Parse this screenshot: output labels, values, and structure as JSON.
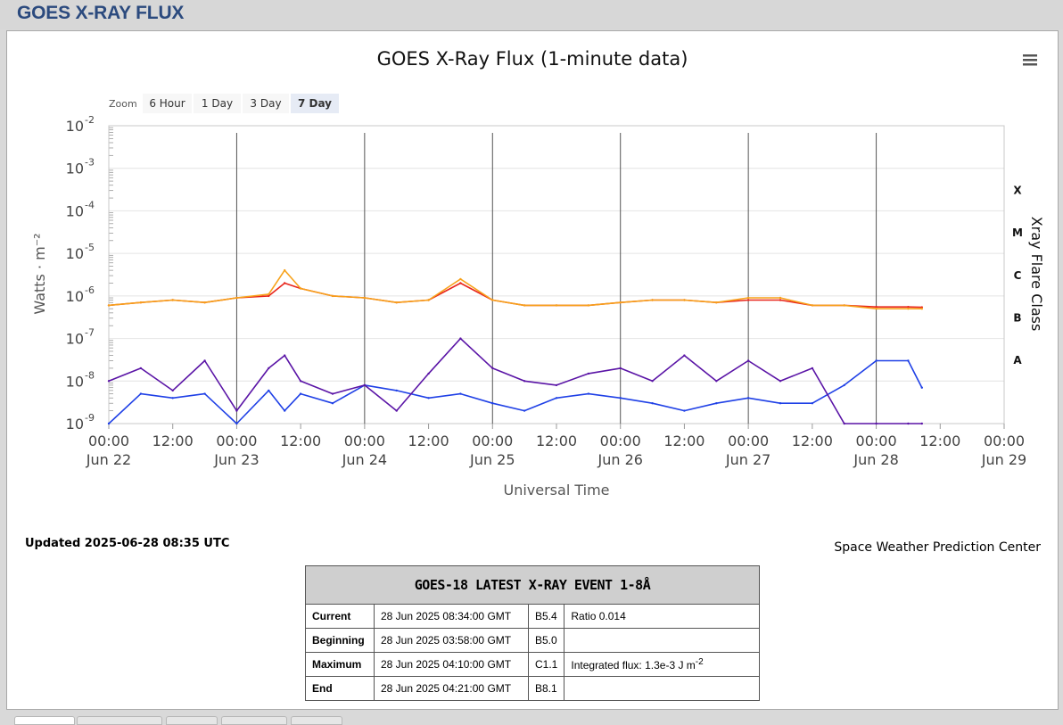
{
  "header": {
    "title": "GOES X-RAY FLUX"
  },
  "chart_menu_icon": "hamburger-menu-icon",
  "zoom": {
    "label": "Zoom",
    "buttons": [
      "6 Hour",
      "1 Day",
      "3 Day",
      "7 Day"
    ],
    "selected": "7 Day"
  },
  "updated_text": "Updated 2025-06-28 08:35 UTC",
  "credit_text": "Space Weather Prediction Center",
  "colors": {
    "goes18_long": "#e8261c",
    "goes18_short": "#1f40e6",
    "goes19_long": "#f7a21b",
    "goes19_short": "#5a14a6"
  },
  "chart_data": {
    "type": "line",
    "title": "GOES X-Ray Flux (1-minute data)",
    "xlabel": "Universal Time",
    "ylabel": "Watts · m⁻²",
    "y2label": "Xray Flare Class",
    "yscale": "log",
    "ylim": [
      1e-09,
      0.01
    ],
    "xlim": [
      "2025-06-22T00:00",
      "2025-06-29T00:00"
    ],
    "y_ticks": [
      {
        "base": "10",
        "exp": "-2"
      },
      {
        "base": "10",
        "exp": "-3"
      },
      {
        "base": "10",
        "exp": "-4"
      },
      {
        "base": "10",
        "exp": "-5"
      },
      {
        "base": "10",
        "exp": "-6"
      },
      {
        "base": "10",
        "exp": "-7"
      },
      {
        "base": "10",
        "exp": "-8"
      },
      {
        "base": "10",
        "exp": "-9"
      }
    ],
    "x_ticks": [
      {
        "time": "00:00",
        "date": "Jun 22"
      },
      {
        "time": "12:00",
        "date": ""
      },
      {
        "time": "00:00",
        "date": "Jun 23"
      },
      {
        "time": "12:00",
        "date": ""
      },
      {
        "time": "00:00",
        "date": "Jun 24"
      },
      {
        "time": "12:00",
        "date": ""
      },
      {
        "time": "00:00",
        "date": "Jun 25"
      },
      {
        "time": "12:00",
        "date": ""
      },
      {
        "time": "00:00",
        "date": "Jun 26"
      },
      {
        "time": "12:00",
        "date": ""
      },
      {
        "time": "00:00",
        "date": "Jun 27"
      },
      {
        "time": "12:00",
        "date": ""
      },
      {
        "time": "00:00",
        "date": "Jun 28"
      },
      {
        "time": "12:00",
        "date": ""
      },
      {
        "time": "00:00",
        "date": "Jun 29"
      }
    ],
    "flare_classes": [
      {
        "label": "X",
        "threshold": 0.0001
      },
      {
        "label": "M",
        "threshold": 1e-05
      },
      {
        "label": "C",
        "threshold": 1e-06
      },
      {
        "label": "B",
        "threshold": 1e-07
      },
      {
        "label": "A",
        "threshold": 1e-08
      }
    ],
    "x": [
      "2025-06-22T00:00",
      "2025-06-22T06:00",
      "2025-06-22T12:00",
      "2025-06-22T18:00",
      "2025-06-23T00:00",
      "2025-06-23T06:00",
      "2025-06-23T09:00",
      "2025-06-23T12:00",
      "2025-06-23T18:00",
      "2025-06-24T00:00",
      "2025-06-24T06:00",
      "2025-06-24T12:00",
      "2025-06-24T18:00",
      "2025-06-25T00:00",
      "2025-06-25T06:00",
      "2025-06-25T12:00",
      "2025-06-25T18:00",
      "2025-06-26T00:00",
      "2025-06-26T06:00",
      "2025-06-26T12:00",
      "2025-06-26T18:00",
      "2025-06-27T00:00",
      "2025-06-27T06:00",
      "2025-06-27T12:00",
      "2025-06-27T18:00",
      "2025-06-28T00:00",
      "2025-06-28T06:00",
      "2025-06-28T08:34"
    ],
    "series": [
      {
        "name": "GOES-18 Long",
        "values": [
          6e-07,
          7e-07,
          8e-07,
          7e-07,
          9e-07,
          1e-06,
          2e-06,
          1.5e-06,
          1e-06,
          9e-07,
          7e-07,
          8e-07,
          2e-06,
          8e-07,
          6e-07,
          6e-07,
          6e-07,
          7e-07,
          8e-07,
          8e-07,
          7e-07,
          8e-07,
          8e-07,
          6e-07,
          6e-07,
          5.5e-07,
          5.5e-07,
          5.4e-07
        ]
      },
      {
        "name": "GOES-18 Short",
        "values": [
          1e-09,
          5e-09,
          4e-09,
          5e-09,
          1e-09,
          6e-09,
          2e-09,
          5e-09,
          3e-09,
          8e-09,
          6e-09,
          4e-09,
          5e-09,
          3e-09,
          2e-09,
          4e-09,
          5e-09,
          4e-09,
          3e-09,
          2e-09,
          3e-09,
          4e-09,
          3e-09,
          3e-09,
          8e-09,
          3e-08,
          3e-08,
          7e-09
        ]
      },
      {
        "name": "GOES-19 Long",
        "values": [
          6e-07,
          7e-07,
          8e-07,
          7e-07,
          9e-07,
          1.1e-06,
          4e-06,
          1.5e-06,
          1e-06,
          9e-07,
          7e-07,
          8e-07,
          2.5e-06,
          8e-07,
          6e-07,
          6e-07,
          6e-07,
          7e-07,
          8e-07,
          8e-07,
          7e-07,
          9e-07,
          9e-07,
          6e-07,
          6e-07,
          5e-07,
          5e-07,
          5e-07
        ]
      },
      {
        "name": "GOES-19 Short",
        "values": [
          1e-08,
          2e-08,
          6e-09,
          3e-08,
          2e-09,
          2e-08,
          4e-08,
          1e-08,
          5e-09,
          8e-09,
          2e-09,
          1.5e-08,
          1e-07,
          2e-08,
          1e-08,
          8e-09,
          1.5e-08,
          2e-08,
          1e-08,
          4e-08,
          1e-08,
          3e-08,
          1e-08,
          2e-08,
          1e-09,
          1e-09,
          1e-09,
          1e-09
        ]
      }
    ]
  },
  "event_table": {
    "title": "GOES-18 LATEST X-RAY EVENT 1-8Å",
    "rows": [
      {
        "label": "Current",
        "time": "28 Jun 2025 08:34:00 GMT",
        "class": "B5.4",
        "note": "Ratio 0.014"
      },
      {
        "label": "Beginning",
        "time": "28 Jun 2025 03:58:00 GMT",
        "class": "B5.0",
        "note": ""
      },
      {
        "label": "Maximum",
        "time": "28 Jun 2025 04:10:00 GMT",
        "class": "C1.1",
        "note": "Integrated flux: 1.3e-3 J m",
        "note_sup": "-2"
      },
      {
        "label": "End",
        "time": "28 Jun 2025 04:21:00 GMT",
        "class": "B8.1",
        "note": ""
      }
    ]
  }
}
